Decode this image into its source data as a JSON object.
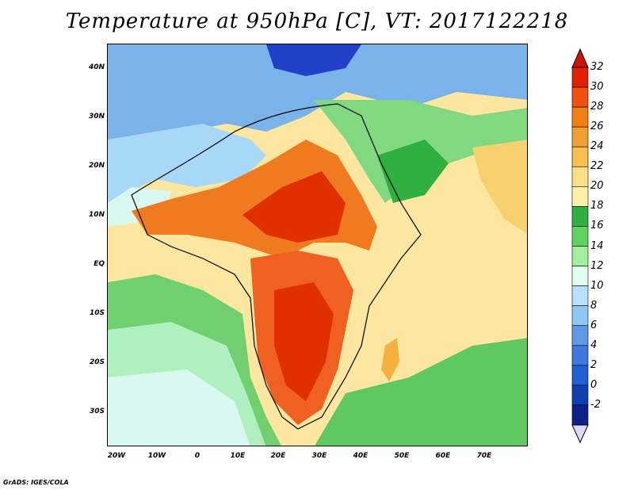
{
  "title": "Temperature at 950hPa [C], VT: 2017122218",
  "credit": "GrADS: IGES/COLA",
  "map": {
    "lat_range": [
      -35,
      45
    ],
    "lon_range": [
      -25,
      80
    ],
    "y_ticks": [
      "40N",
      "30N",
      "20N",
      "10N",
      "EQ",
      "10S",
      "20S",
      "30S"
    ],
    "y_tick_values": [
      40,
      30,
      20,
      10,
      0,
      -10,
      -20,
      -30
    ],
    "x_ticks": [
      "20W",
      "10W",
      "0",
      "10E",
      "20E",
      "30E",
      "40E",
      "50E",
      "60E",
      "70E"
    ],
    "x_tick_values": [
      -20,
      -10,
      0,
      10,
      20,
      30,
      40,
      50,
      60,
      70
    ]
  },
  "colorbar": {
    "labels": [
      "32",
      "30",
      "28",
      "26",
      "24",
      "22",
      "20",
      "18",
      "16",
      "14",
      "12",
      "10",
      "8",
      "6",
      "4",
      "2",
      "0",
      "-2"
    ],
    "colors": [
      "#e02000",
      "#f05010",
      "#f08010",
      "#f0a030",
      "#f5c050",
      "#fbe088",
      "#fff0a8",
      "#30b040",
      "#60d060",
      "#a0f0a0",
      "#e0fff0",
      "#b8e0fa",
      "#90c8f5",
      "#6098e8",
      "#4078e0",
      "#2060d0",
      "#1040b0",
      "#10208a"
    ],
    "top_arrow_color": "#d01000",
    "bottom_arrow_color": "#e0d8f8"
  }
}
